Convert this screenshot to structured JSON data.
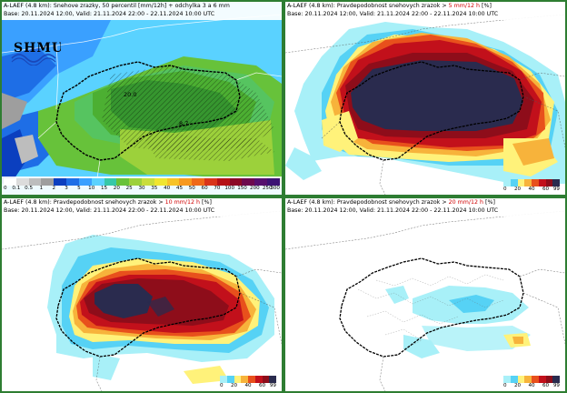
{
  "panels": [
    {
      "title_prefix": "A-LAEF (4.8 km): Snehove zrazky, 50 percentil [mm/12h] + odchylka 3 a 6 mm",
      "title_threshold": "",
      "title_suffix": "",
      "base_valid": "Base: 20.11.2024 12:00, Valid: 21.11.2024 22:00 - 22.11.2024 10:00 UTC",
      "logo_text": "SHMU",
      "labels": [
        "20.0",
        "8.7"
      ],
      "colorbar": {
        "ticks": [
          "0",
          "0.1",
          "0.5",
          "1",
          "2",
          "3",
          "5",
          "10",
          "15",
          "20",
          "25",
          "30",
          "35",
          "40",
          "45",
          "50",
          "60",
          "70",
          "100",
          "150",
          "200",
          "250",
          "300"
        ],
        "colors": [
          "#ffffff",
          "#dcdcdc",
          "#bdbdbd",
          "#9e9e9e",
          "#0b3fbf",
          "#1e6ee6",
          "#3aa0ff",
          "#5ad2ff",
          "#36c8a8",
          "#67c23a",
          "#9cd13b",
          "#c9dd3c",
          "#f0e52f",
          "#f7c326",
          "#f79a1f",
          "#ef6a19",
          "#d9341a",
          "#b51216",
          "#8c0a26",
          "#6d0a4e",
          "#55106e",
          "#3c1374"
        ]
      }
    },
    {
      "title_prefix": "A-LAEF (4.8 km): Pravdepodobnost snehovych zrazok > ",
      "title_threshold": "5 mm/12 h",
      "title_suffix": " [%]",
      "base_valid": "Base: 20.11.2024 12:00, Valid: 21.11.2024 22:00 - 22.11.2024 10:00 UTC",
      "colorbar": {
        "ticks": [
          "0",
          "20",
          "40",
          "60",
          "99"
        ],
        "colors": [
          "#a8f0f8",
          "#56d2f5",
          "#fff27a",
          "#f7b33b",
          "#e8501c",
          "#c2101b",
          "#8e0d1a",
          "#2a2b4e"
        ]
      }
    },
    {
      "title_prefix": "A-LAEF (4.8 km): Pravdepodobnost snehovych zrazok > ",
      "title_threshold": "10 mm/12 h",
      "title_suffix": " [%]",
      "base_valid": "Base: 20.11.2024 12:00, Valid: 21.11.2024 22:00 - 22.11.2024 10:00 UTC",
      "colorbar": {
        "ticks": [
          "0",
          "20",
          "40",
          "60",
          "99"
        ],
        "colors": [
          "#a8f0f8",
          "#56d2f5",
          "#fff27a",
          "#f7b33b",
          "#e8501c",
          "#c2101b",
          "#8e0d1a",
          "#2a2b4e"
        ]
      }
    },
    {
      "title_prefix": "A-LAEF (4.8 km): Pravdepodobnost snehovych zrazok > ",
      "title_threshold": "20 mm/12 h",
      "title_suffix": " [%]",
      "base_valid": "Base: 20.11.2024 12:00, Valid: 21.11.2024 22:00 - 22.11.2024 10:00 UTC",
      "colorbar": {
        "ticks": [
          "0",
          "20",
          "40",
          "60",
          "99"
        ],
        "colors": [
          "#a8f0f8",
          "#56d2f5",
          "#fff27a",
          "#f7b33b",
          "#e8501c",
          "#c2101b",
          "#8e0d1a",
          "#2a2b4e"
        ]
      }
    }
  ]
}
